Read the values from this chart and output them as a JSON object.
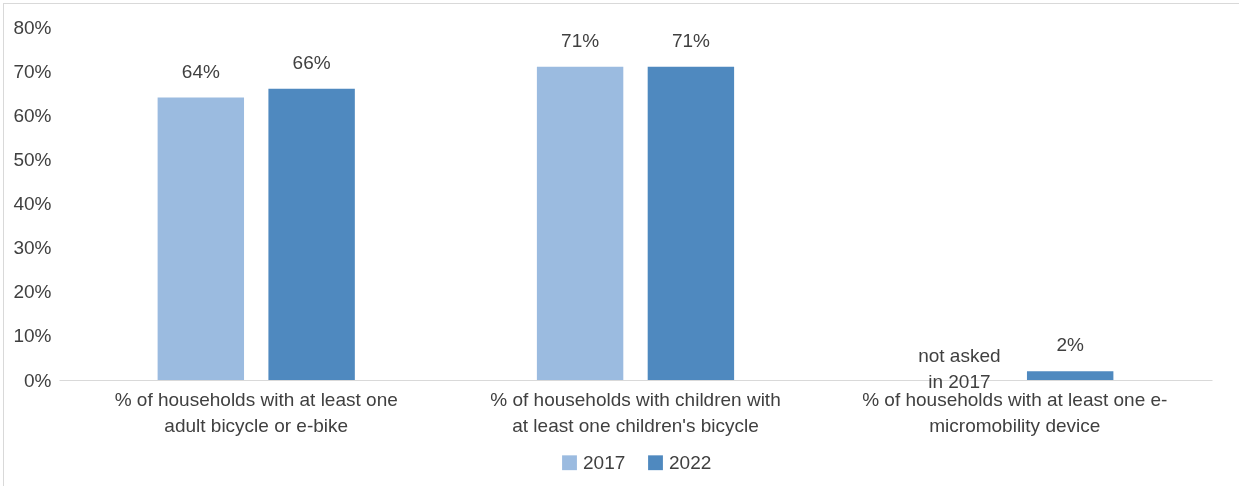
{
  "chart_data": {
    "type": "bar",
    "categories": [
      "% of households with at least one adult bicycle or e-bike",
      "% of households with children with at least one children's bicycle",
      "% of households with at least one e-micromobility device"
    ],
    "series": [
      {
        "name": "2017",
        "color": "#9bbbe0",
        "values": [
          64,
          71,
          null
        ]
      },
      {
        "name": "2022",
        "color": "#4f89bf",
        "values": [
          66,
          71,
          2
        ]
      }
    ],
    "ylim": [
      0,
      80
    ],
    "yticks": [
      {
        "value": 0,
        "label": "0%"
      },
      {
        "value": 10,
        "label": "10%"
      },
      {
        "value": 20,
        "label": "20%"
      },
      {
        "value": 30,
        "label": "30%"
      },
      {
        "value": 40,
        "label": "40%"
      },
      {
        "value": 50,
        "label": "50%"
      },
      {
        "value": 60,
        "label": "60%"
      },
      {
        "value": 70,
        "label": "70%"
      },
      {
        "value": 80,
        "label": "80%"
      }
    ],
    "value_labels": [
      [
        "64%",
        "71%",
        null
      ],
      [
        "66%",
        "71%",
        "2%"
      ]
    ],
    "annotations": [
      "not asked in 2017"
    ],
    "grid": false,
    "legend": "bottom"
  }
}
